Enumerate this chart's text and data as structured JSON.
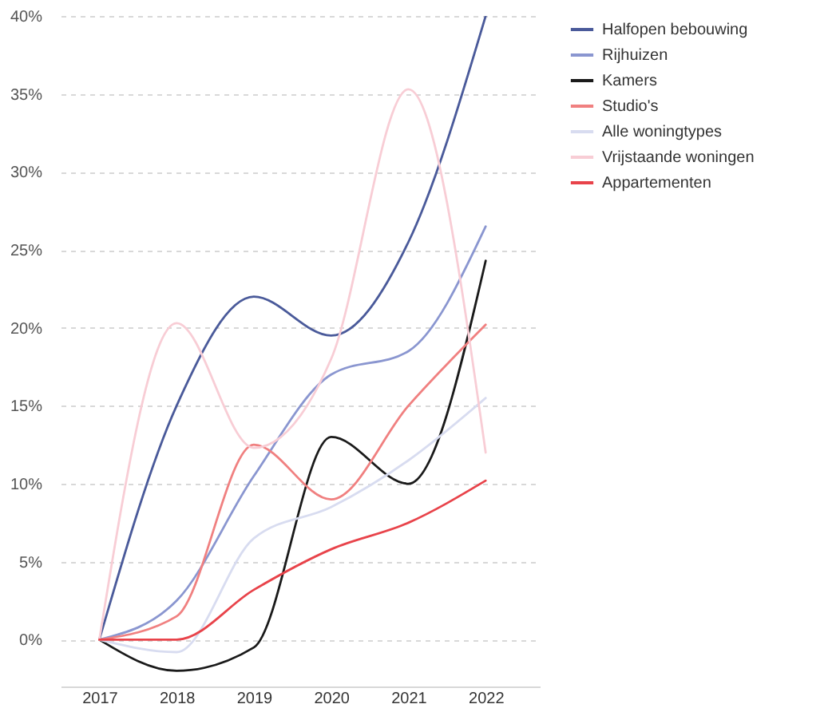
{
  "chart_data": {
    "type": "line",
    "categories": [
      "2017",
      "2018",
      "2019",
      "2020",
      "2021",
      "2022"
    ],
    "series": [
      {
        "name": "Halfopen bebouwing",
        "color": "#4a5a9a",
        "values": [
          0,
          15,
          22,
          19.5,
          25.5,
          40
        ]
      },
      {
        "name": "Rijhuizen",
        "color": "#8a96d0",
        "values": [
          0,
          2.5,
          10.5,
          17,
          18.5,
          26.5
        ]
      },
      {
        "name": "Kamers",
        "color": "#1a1a1a",
        "values": [
          0,
          -2,
          -0.5,
          13,
          10,
          24.3
        ]
      },
      {
        "name": "Studio's",
        "color": "#f08080",
        "values": [
          0,
          1.5,
          12.5,
          9,
          15,
          20.2
        ]
      },
      {
        "name": "Alle woningtypes",
        "color": "#d8dcf0",
        "values": [
          0,
          -0.8,
          6.5,
          8.5,
          11.5,
          15.5
        ]
      },
      {
        "name": "Vrijstaande woningen",
        "color": "#f8cdd5",
        "values": [
          0,
          20.3,
          12.3,
          18,
          35.3,
          12
        ]
      },
      {
        "name": "Appartementen",
        "color": "#e8434a",
        "values": [
          0,
          0,
          3.2,
          5.8,
          7.5,
          10.2
        ]
      }
    ],
    "ylim": [
      -3,
      40
    ],
    "yticks": [
      {
        "value": 0,
        "label": "0%"
      },
      {
        "value": 5,
        "label": "5%"
      },
      {
        "value": 10,
        "label": "10%"
      },
      {
        "value": 15,
        "label": "15%"
      },
      {
        "value": 20,
        "label": "20%"
      },
      {
        "value": 25,
        "label": "25%"
      },
      {
        "value": 30,
        "label": "30%"
      },
      {
        "value": 35,
        "label": "35%"
      },
      {
        "value": 40,
        "label": "40%"
      }
    ],
    "grid": "y",
    "legend": "top right",
    "line_style": "solid",
    "marker": "none"
  }
}
